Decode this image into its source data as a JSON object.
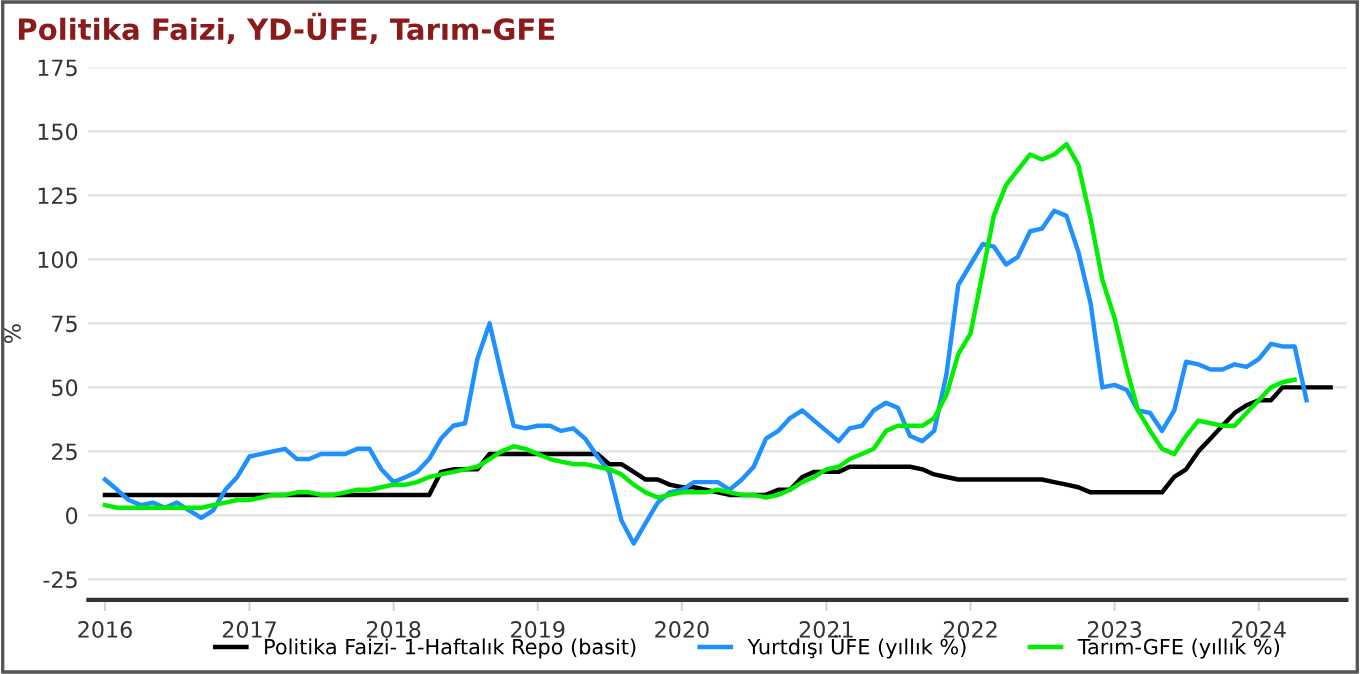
{
  "chart_data": {
    "type": "line",
    "title": "Politika Faizi, YD-ÜFE, Tarım-GFE",
    "ylabel": "%",
    "x": [
      "2016-01",
      "2016-02",
      "2016-03",
      "2016-04",
      "2016-05",
      "2016-06",
      "2016-07",
      "2016-08",
      "2016-09",
      "2016-10",
      "2016-11",
      "2016-12",
      "2017-01",
      "2017-02",
      "2017-03",
      "2017-04",
      "2017-05",
      "2017-06",
      "2017-07",
      "2017-08",
      "2017-09",
      "2017-10",
      "2017-11",
      "2017-12",
      "2018-01",
      "2018-02",
      "2018-03",
      "2018-04",
      "2018-05",
      "2018-06",
      "2018-07",
      "2018-08",
      "2018-09",
      "2018-10",
      "2018-11",
      "2018-12",
      "2019-01",
      "2019-02",
      "2019-03",
      "2019-04",
      "2019-05",
      "2019-06",
      "2019-07",
      "2019-08",
      "2019-09",
      "2019-10",
      "2019-11",
      "2019-12",
      "2020-01",
      "2020-02",
      "2020-03",
      "2020-04",
      "2020-05",
      "2020-06",
      "2020-07",
      "2020-08",
      "2020-09",
      "2020-10",
      "2020-11",
      "2020-12",
      "2021-01",
      "2021-02",
      "2021-03",
      "2021-04",
      "2021-05",
      "2021-06",
      "2021-07",
      "2021-08",
      "2021-09",
      "2021-10",
      "2021-11",
      "2021-12",
      "2022-01",
      "2022-02",
      "2022-03",
      "2022-04",
      "2022-05",
      "2022-06",
      "2022-07",
      "2022-08",
      "2022-09",
      "2022-10",
      "2022-11",
      "2022-12",
      "2023-01",
      "2023-02",
      "2023-03",
      "2023-04",
      "2023-05",
      "2023-06",
      "2023-07",
      "2023-08",
      "2023-09",
      "2023-10",
      "2023-11",
      "2023-12",
      "2024-01",
      "2024-02",
      "2024-03",
      "2024-04",
      "2024-05",
      "2024-06",
      "2024-07"
    ],
    "xlim": [
      "2015-11-20",
      "2024-08-10"
    ],
    "ylim": [
      -33,
      175
    ],
    "xticks": [
      {
        "value": "2016-01",
        "label": "2016"
      },
      {
        "value": "2017-01",
        "label": "2017"
      },
      {
        "value": "2018-01",
        "label": "2018"
      },
      {
        "value": "2019-01",
        "label": "2019"
      },
      {
        "value": "2020-01",
        "label": "2020"
      },
      {
        "value": "2021-01",
        "label": "2021"
      },
      {
        "value": "2022-01",
        "label": "2022"
      },
      {
        "value": "2023-01",
        "label": "2023"
      },
      {
        "value": "2024-01",
        "label": "2024"
      }
    ],
    "yticks": [
      -25,
      0,
      25,
      50,
      75,
      100,
      125,
      150,
      175
    ],
    "grid": "y",
    "legend": "bottom",
    "marker": "none",
    "line_style": "solid",
    "series": [
      {
        "name": "Politika Faizi- 1-Haftalık Repo (basit)",
        "color": "#000000",
        "values": [
          8,
          8,
          8,
          8,
          8,
          8,
          8,
          8,
          8,
          8,
          8,
          8,
          8,
          8,
          8,
          8,
          8,
          8,
          8,
          8,
          8,
          8,
          8,
          8,
          8,
          8,
          8,
          8,
          17,
          18,
          18,
          18,
          24,
          24,
          24,
          24,
          24,
          24,
          24,
          24,
          24,
          24,
          20,
          20,
          17,
          14,
          14,
          12,
          11,
          11,
          10,
          9,
          8,
          8,
          8,
          8,
          10,
          10,
          15,
          17,
          17,
          17,
          19,
          19,
          19,
          19,
          19,
          19,
          18,
          16,
          15,
          14,
          14,
          14,
          14,
          14,
          14,
          14,
          14,
          13,
          12,
          11,
          9,
          9,
          9,
          9,
          9,
          9,
          9,
          15,
          18,
          25,
          30,
          35,
          40,
          43,
          45,
          45,
          50,
          50,
          50,
          50,
          50
        ]
      },
      {
        "name": "Yurtdışı ÜFE (yıllık %)",
        "color": "#1e90ff",
        "values": [
          14,
          10,
          6,
          4,
          5,
          3,
          5,
          2,
          -1,
          2,
          10,
          15,
          23,
          24,
          25,
          26,
          22,
          22,
          24,
          24,
          24,
          26,
          26,
          18,
          13,
          15,
          17,
          22,
          30,
          35,
          36,
          61,
          75,
          55,
          35,
          34,
          35,
          35,
          33,
          34,
          30,
          23,
          17,
          -2,
          -11,
          -3,
          5,
          9,
          10,
          13,
          13,
          13,
          10,
          14,
          19,
          30,
          33,
          38,
          41,
          37,
          33,
          29,
          34,
          35,
          41,
          44,
          42,
          31,
          29,
          33,
          55,
          90,
          98,
          106,
          105,
          98,
          101,
          111,
          112,
          119,
          117,
          103,
          83,
          50,
          51,
          49,
          41,
          40,
          33,
          41,
          60,
          59,
          57,
          57,
          59,
          58,
          61,
          67,
          66,
          66,
          45,
          null,
          null
        ]
      },
      {
        "name": "Tarım-GFE (yıllık %)",
        "color": "#00ee00",
        "values": [
          4,
          3,
          3,
          3,
          3,
          3,
          3,
          3,
          3,
          4,
          5,
          6,
          6,
          7,
          8,
          8,
          9,
          9,
          8,
          8,
          9,
          10,
          10,
          11,
          12,
          12,
          13,
          15,
          16,
          17,
          18,
          19,
          22,
          25,
          27,
          26,
          24,
          22,
          21,
          20,
          20,
          19,
          18,
          16,
          12,
          9,
          7,
          8,
          9,
          9,
          9,
          10,
          9,
          8,
          8,
          7,
          8,
          10,
          13,
          15,
          18,
          19,
          22,
          24,
          26,
          33,
          35,
          35,
          35,
          38,
          47,
          63,
          71,
          95,
          117,
          129,
          135,
          141,
          139,
          141,
          145,
          137,
          116,
          92,
          77,
          57,
          41,
          33,
          26,
          24,
          31,
          37,
          36,
          35,
          35,
          40,
          45,
          50,
          52,
          53,
          null,
          null,
          null
        ]
      }
    ]
  }
}
